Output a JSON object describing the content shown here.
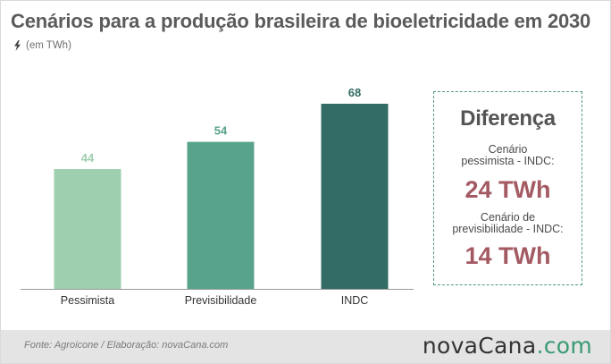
{
  "header": {
    "title": "Cenários para a produção brasileira de bioeletricidade em 2030",
    "unit": "(em TWh)",
    "unit_icon": "lightning-bolt-icon"
  },
  "chart_data": {
    "type": "bar",
    "categories": [
      "Pessimista",
      "Previsibilidade",
      "INDC"
    ],
    "values": [
      44,
      54,
      68
    ],
    "value_labels": [
      "44",
      "54",
      "68"
    ],
    "colors": [
      "#9ecfae",
      "#58a38b",
      "#336b66"
    ],
    "title": "Cenários para a produção brasileira de bioeletricidade em 2030",
    "ylabel": "",
    "xlabel": "",
    "ylim": [
      0,
      68
    ],
    "grid": false
  },
  "callout": {
    "title": "Diferença",
    "item1_label_line1": "Cenário",
    "item1_label_line2": "pessimista -  INDC:",
    "item1_value": "24 TWh",
    "item2_label_line1": "Cenário de",
    "item2_label_line2": "previsibilidade - INDC:",
    "item2_value": "14 TWh"
  },
  "footer": {
    "source": "Fonte:  Agroicone   / Elaboração:   novaCana.com",
    "brand_main": "novaCana",
    "brand_suffix": ".com"
  }
}
